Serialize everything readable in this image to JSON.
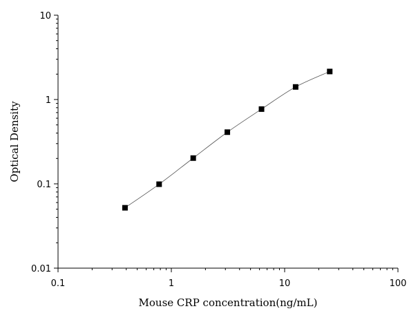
{
  "chart_data": {
    "type": "scatter",
    "title": "",
    "xlabel": "Mouse CRP concentration(ng/mL)",
    "ylabel": "Optical Density",
    "x_scale": "log",
    "y_scale": "log",
    "xlim": [
      0.1,
      100
    ],
    "ylim": [
      0.01,
      10
    ],
    "x_tick_labels": [
      "0.1",
      "1",
      "10",
      "100"
    ],
    "y_tick_labels": [
      "0.01",
      "0.1",
      "1",
      "10"
    ],
    "grid": false,
    "legend": "none",
    "marker": "square",
    "marker_color": "#000000",
    "line_color": "#555555",
    "series": [
      {
        "x": [
          0.39,
          0.78,
          1.56,
          3.12,
          6.25,
          12.5,
          25
        ],
        "y": [
          0.052,
          0.099,
          0.202,
          0.41,
          0.77,
          1.41,
          2.15
        ]
      }
    ]
  }
}
